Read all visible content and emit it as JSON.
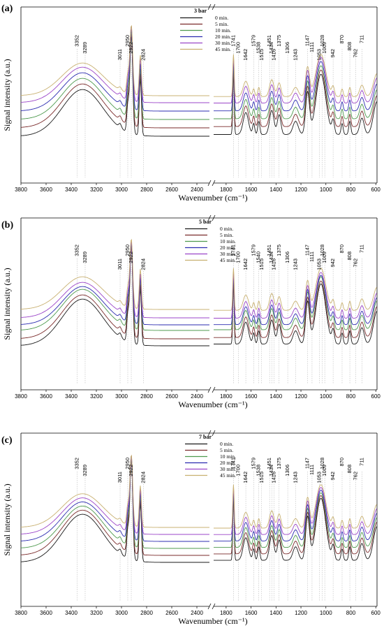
{
  "chart_data": [
    {
      "type": "line",
      "panel_label": "(a)",
      "legend_title": "3 bar",
      "xlabel": "Wavenumber (cm⁻¹)",
      "ylabel": "Signal intensity (a.u.)",
      "x_ticks_left": [
        3800,
        3600,
        3400,
        3200,
        3000,
        2800,
        2600,
        2400
      ],
      "x_ticks_right": [
        1800,
        1600,
        1400,
        1200,
        1000,
        800,
        600
      ],
      "xlim_left": [
        3800,
        2300
      ],
      "xlim_right": [
        1900,
        590
      ],
      "series": [
        {
          "name": "0 min.",
          "color": "#1a1a1a"
        },
        {
          "name": "5 min.",
          "color": "#7a2a2a"
        },
        {
          "name": "10 min.",
          "color": "#4e9a4e"
        },
        {
          "name": "20 min.",
          "color": "#2b2bb0"
        },
        {
          "name": "30 min.",
          "color": "#9b45c8"
        },
        {
          "name": "45 min.",
          "color": "#c8b070"
        }
      ],
      "annotations": [
        {
          "label": "3352",
          "x": 3352
        },
        {
          "label": "3289",
          "x": 3289
        },
        {
          "label": "3011",
          "x": 3011
        },
        {
          "label": "2950",
          "x": 2950
        },
        {
          "label": "2922",
          "x": 2922
        },
        {
          "label": "2824",
          "x": 2824
        },
        {
          "label": "1741",
          "x": 1741
        },
        {
          "label": "1700",
          "x": 1700
        },
        {
          "label": "1642",
          "x": 1642
        },
        {
          "label": "1579",
          "x": 1579
        },
        {
          "label": "1538",
          "x": 1538
        },
        {
          "label": "1515",
          "x": 1515
        },
        {
          "label": "1451",
          "x": 1451
        },
        {
          "label": "1434",
          "x": 1434
        },
        {
          "label": "1416",
          "x": 1416
        },
        {
          "label": "1375",
          "x": 1375
        },
        {
          "label": "1306",
          "x": 1306
        },
        {
          "label": "1243",
          "x": 1243
        },
        {
          "label": "1147",
          "x": 1147
        },
        {
          "label": "1111",
          "x": 1111
        },
        {
          "label": "1053",
          "x": 1053
        },
        {
          "label": "1028",
          "x": 1028
        },
        {
          "label": "1009",
          "x": 1009
        },
        {
          "label": "942",
          "x": 942
        },
        {
          "label": "870",
          "x": 870
        },
        {
          "label": "808",
          "x": 808
        },
        {
          "label": "762",
          "x": 762
        },
        {
          "label": "711",
          "x": 711
        }
      ]
    },
    {
      "type": "line",
      "panel_label": "(b)",
      "legend_title": "5 bar",
      "xlabel": "Wavenumber (cm⁻¹)",
      "ylabel": "Signal intensity (a.u.)",
      "x_ticks_left": [
        3800,
        3600,
        3400,
        3200,
        3000,
        2800,
        2600,
        2400
      ],
      "x_ticks_right": [
        1800,
        1600,
        1400,
        1200,
        1000,
        800,
        600
      ],
      "xlim_left": [
        3800,
        2300
      ],
      "xlim_right": [
        1900,
        590
      ],
      "series": [
        {
          "name": "0 min.",
          "color": "#1a1a1a"
        },
        {
          "name": "5 min.",
          "color": "#7a2a2a"
        },
        {
          "name": "10 min.",
          "color": "#4e9a4e"
        },
        {
          "name": "20 min.",
          "color": "#2b2bb0"
        },
        {
          "name": "30 min.",
          "color": "#9b45c8"
        },
        {
          "name": "45 min.",
          "color": "#c8b070"
        }
      ],
      "annotations": [
        {
          "label": "3352",
          "x": 3352
        },
        {
          "label": "3289",
          "x": 3289
        },
        {
          "label": "3011",
          "x": 3011
        },
        {
          "label": "2950",
          "x": 2950
        },
        {
          "label": "2922",
          "x": 2922
        },
        {
          "label": "2824",
          "x": 2824
        },
        {
          "label": "1741",
          "x": 1741
        },
        {
          "label": "1700",
          "x": 1700
        },
        {
          "label": "1642",
          "x": 1642
        },
        {
          "label": "1579",
          "x": 1579
        },
        {
          "label": "1540",
          "x": 1540
        },
        {
          "label": "1515",
          "x": 1515
        },
        {
          "label": "1451",
          "x": 1451
        },
        {
          "label": "1434",
          "x": 1434
        },
        {
          "label": "1416",
          "x": 1416
        },
        {
          "label": "1375",
          "x": 1375
        },
        {
          "label": "1306",
          "x": 1306
        },
        {
          "label": "1243",
          "x": 1243
        },
        {
          "label": "1147",
          "x": 1147
        },
        {
          "label": "1111",
          "x": 1111
        },
        {
          "label": "1053",
          "x": 1053
        },
        {
          "label": "1028",
          "x": 1028
        },
        {
          "label": "1009",
          "x": 1009
        },
        {
          "label": "942",
          "x": 942
        },
        {
          "label": "870",
          "x": 870
        },
        {
          "label": "808",
          "x": 808
        },
        {
          "label": "762",
          "x": 762
        },
        {
          "label": "711",
          "x": 711
        }
      ]
    },
    {
      "type": "line",
      "panel_label": "(c)",
      "legend_title": "7 bar",
      "xlabel": "Wavenumber (cm⁻¹)",
      "ylabel": "Signal intensity (a.u.)",
      "x_ticks_left": [
        3800,
        3600,
        3400,
        3200,
        3000,
        2800,
        2600,
        2400
      ],
      "x_ticks_right": [
        1800,
        1600,
        1400,
        1200,
        1000,
        800,
        600
      ],
      "xlim_left": [
        3800,
        2300
      ],
      "xlim_right": [
        1900,
        590
      ],
      "series": [
        {
          "name": "0 min.",
          "color": "#1a1a1a"
        },
        {
          "name": "5 min.",
          "color": "#7a2a2a"
        },
        {
          "name": "10 min.",
          "color": "#4e9a4e"
        },
        {
          "name": "20 min.",
          "color": "#2b2bb0"
        },
        {
          "name": "30 min.",
          "color": "#9b45c8"
        },
        {
          "name": "45 min.",
          "color": "#c8b070"
        }
      ],
      "annotations": [
        {
          "label": "3352",
          "x": 3352
        },
        {
          "label": "3289",
          "x": 3289
        },
        {
          "label": "3011",
          "x": 3011
        },
        {
          "label": "2950",
          "x": 2950
        },
        {
          "label": "2922",
          "x": 2922
        },
        {
          "label": "2824",
          "x": 2824
        },
        {
          "label": "1741",
          "x": 1741
        },
        {
          "label": "1700",
          "x": 1700
        },
        {
          "label": "1642",
          "x": 1642
        },
        {
          "label": "1579",
          "x": 1579
        },
        {
          "label": "1538",
          "x": 1538
        },
        {
          "label": "1515",
          "x": 1515
        },
        {
          "label": "1451",
          "x": 1451
        },
        {
          "label": "1434",
          "x": 1434
        },
        {
          "label": "1416",
          "x": 1416
        },
        {
          "label": "1375",
          "x": 1375
        },
        {
          "label": "1306",
          "x": 1306
        },
        {
          "label": "1243",
          "x": 1243
        },
        {
          "label": "1147",
          "x": 1147
        },
        {
          "label": "1111",
          "x": 1111
        },
        {
          "label": "1053",
          "x": 1053
        },
        {
          "label": "1028",
          "x": 1028
        },
        {
          "label": "1009",
          "x": 1009
        },
        {
          "label": "942",
          "x": 942
        },
        {
          "label": "870",
          "x": 870
        },
        {
          "label": "808",
          "x": 808
        },
        {
          "label": "762",
          "x": 762
        },
        {
          "label": "711",
          "x": 711
        }
      ]
    }
  ]
}
